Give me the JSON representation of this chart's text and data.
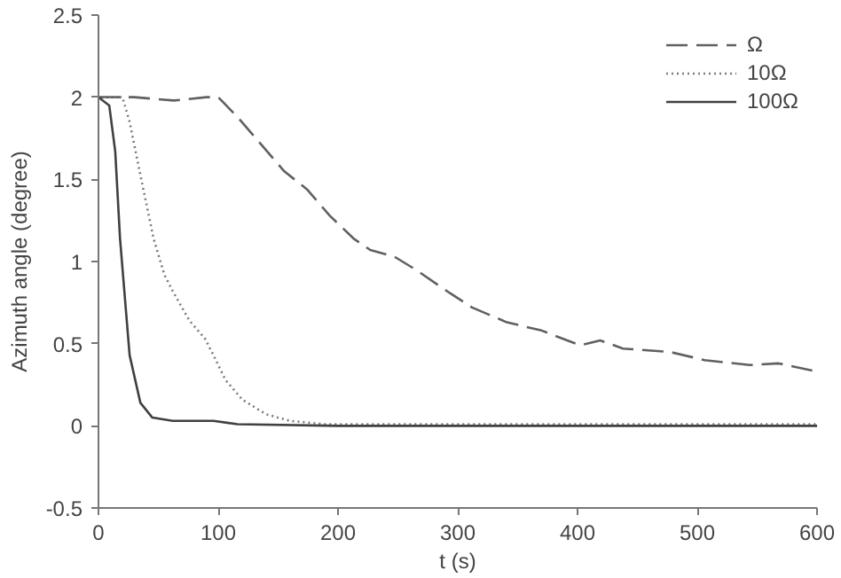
{
  "chart_data": {
    "type": "line",
    "xlabel": "t (s)",
    "ylabel": "Azimuth angle (degree)",
    "xlim": [
      0,
      600
    ],
    "xticks": [
      0,
      100,
      200,
      300,
      400,
      500,
      600
    ],
    "ylim": [
      -0.5,
      2.5
    ],
    "yticks": [
      -0.5,
      0,
      0.5,
      1,
      1.5,
      2,
      2.5
    ],
    "grid": false,
    "legend": "top right",
    "marker": "none",
    "series": [
      {
        "name": "Ω",
        "color": "#606060",
        "line_style": "dashed",
        "x": [
          0,
          30,
          63,
          90,
          100,
          116,
          135,
          155,
          174,
          193,
          213,
          227,
          247,
          265,
          293,
          312,
          341,
          370,
          402,
          419,
          438,
          477,
          506,
          544,
          568,
          600
        ],
        "values": [
          2.0,
          2.0,
          1.98,
          2.0,
          2.0,
          1.88,
          1.72,
          1.55,
          1.44,
          1.28,
          1.14,
          1.07,
          1.03,
          0.95,
          0.81,
          0.72,
          0.63,
          0.58,
          0.49,
          0.52,
          0.47,
          0.45,
          0.4,
          0.37,
          0.38,
          0.33
        ]
      },
      {
        "name": "10Ω",
        "color": "#7a7a7a",
        "line_style": "dotted",
        "x": [
          0,
          20,
          26,
          36,
          46,
          55,
          62,
          76,
          89,
          96,
          106,
          120,
          140,
          160,
          189,
          300,
          450,
          600
        ],
        "values": [
          2.0,
          2.0,
          1.85,
          1.49,
          1.14,
          0.92,
          0.82,
          0.64,
          0.53,
          0.43,
          0.28,
          0.16,
          0.07,
          0.03,
          0.01,
          0.01,
          0.01,
          0.01
        ]
      },
      {
        "name": "100Ω",
        "color": "#404040",
        "line_style": "solid",
        "x": [
          0,
          9,
          14,
          18,
          26,
          35,
          45,
          62,
          96,
          116,
          200,
          400,
          600
        ],
        "values": [
          2.0,
          1.95,
          1.67,
          1.14,
          0.43,
          0.14,
          0.05,
          0.03,
          0.03,
          0.01,
          0.0,
          0.0,
          0.0
        ]
      }
    ]
  }
}
